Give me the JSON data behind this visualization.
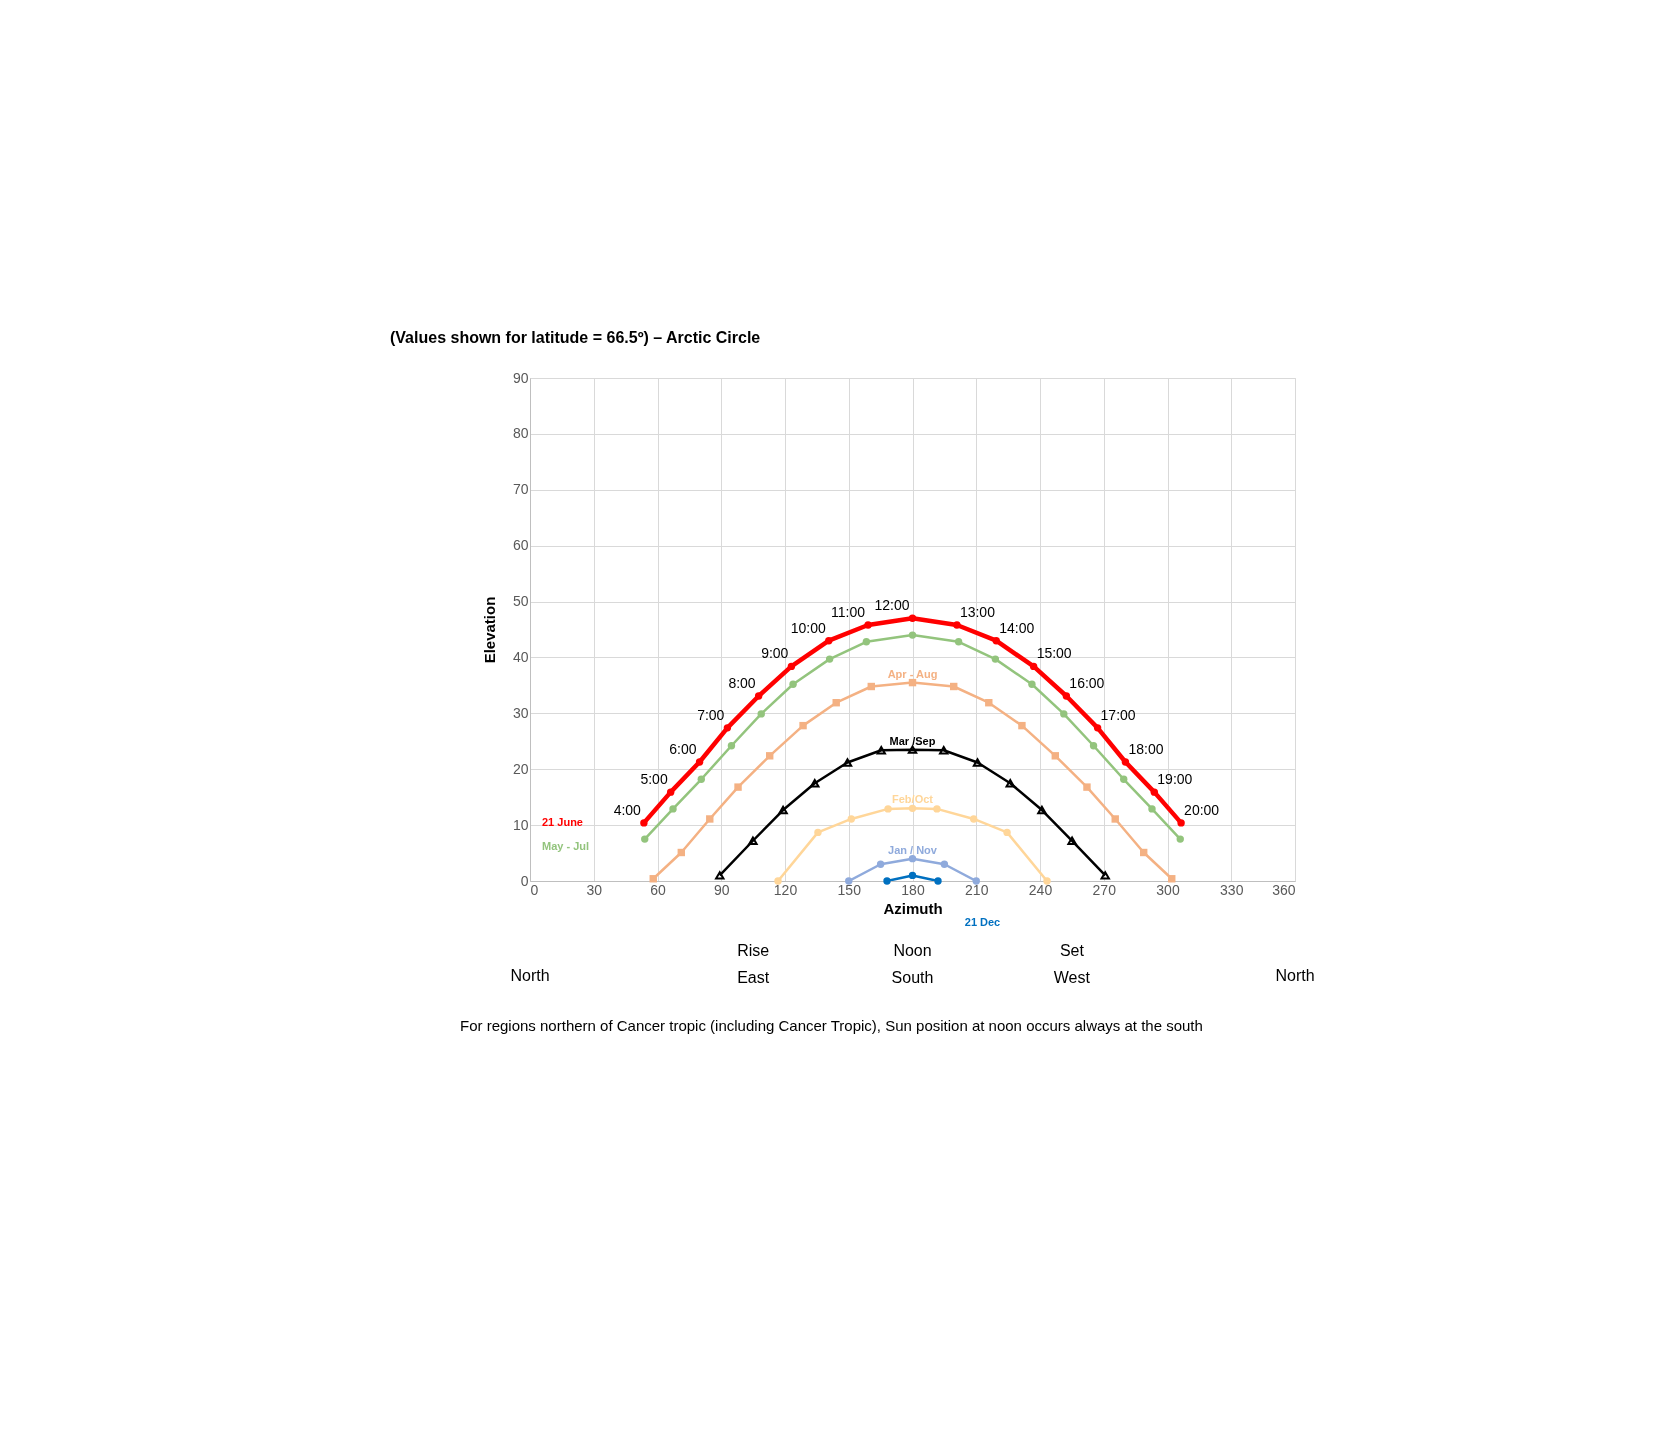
{
  "chart_data": {
    "type": "line",
    "title": "(Values shown for latitude = 66.5º) – Arctic Circle",
    "xlabel": "Azimuth",
    "ylabel": "Elevation",
    "xlim": [
      0,
      360
    ],
    "xticks": [
      0,
      30,
      60,
      90,
      120,
      150,
      180,
      210,
      240,
      270,
      300,
      330,
      360
    ],
    "ylim": [
      0,
      90
    ],
    "yticks": [
      0,
      10,
      20,
      30,
      40,
      50,
      60,
      70,
      80,
      90
    ],
    "grid": true,
    "marker": "circle",
    "series": [
      {
        "name": "21 June",
        "color": "#ff0000",
        "x": [
          53.6,
          66.2,
          79.8,
          92.9,
          107.6,
          123.0,
          140.6,
          159.1,
          180,
          200.9,
          219.4,
          237.0,
          252.4,
          267.1,
          280.2,
          293.8,
          306.4
        ],
        "values": [
          10.4,
          15.9,
          21.3,
          27.4,
          33.1,
          38.4,
          43.0,
          45.8,
          47,
          45.8,
          43.0,
          38.4,
          33.1,
          27.4,
          21.3,
          15.9,
          10.4
        ]
      },
      {
        "name": "May - Jul",
        "color": "#93c47d",
        "x": [
          54.0,
          67.3,
          80.6,
          94.8,
          108.8,
          123.8,
          141.0,
          158.3,
          180,
          201.7,
          219.0,
          236.2,
          251.2,
          265.2,
          279.4,
          292.7,
          306.0
        ],
        "values": [
          7.5,
          12.9,
          18.2,
          24.2,
          29.9,
          35.2,
          39.7,
          42.8,
          44,
          42.8,
          39.7,
          35.2,
          29.9,
          24.2,
          18.2,
          12.9,
          7.5
        ]
      },
      {
        "name": "Apr - Aug",
        "color": "#f4b183",
        "marker": "square",
        "x": [
          58.0,
          71.2,
          84.6,
          97.9,
          112.8,
          128.5,
          144.1,
          160.6,
          180,
          199.4,
          215.9,
          231.5,
          247.2,
          262.1,
          275.4,
          288.8,
          302.0
        ],
        "values": [
          0.4,
          5.1,
          11.1,
          16.8,
          22.4,
          27.8,
          31.9,
          34.8,
          35.5,
          34.8,
          31.9,
          27.8,
          22.4,
          16.8,
          11.1,
          5.1,
          0.4
        ]
      },
      {
        "name": "Mar /Sep",
        "color": "#000000",
        "marker": "triangle",
        "x": [
          89.3,
          104.9,
          119.1,
          134.0,
          149.4,
          165.3,
          180,
          194.7,
          210.6,
          226.0,
          240.9,
          255.1,
          270.7
        ],
        "values": [
          1.0,
          7.2,
          12.7,
          17.5,
          21.2,
          23.4,
          23.5,
          23.4,
          21.2,
          17.5,
          12.7,
          7.2,
          1.0
        ]
      },
      {
        "name": "Feb/Oct",
        "color": "#ffd699",
        "x": [
          116.7,
          135.5,
          151.2,
          168.5,
          180,
          191.5,
          208.8,
          224.5,
          243.3
        ],
        "values": [
          0,
          8.7,
          11.1,
          12.9,
          13,
          12.9,
          11.1,
          8.7,
          0
        ]
      },
      {
        "name": "Jan / Nov",
        "color": "#8faadc",
        "x": [
          150,
          165,
          180,
          195,
          210
        ],
        "values": [
          0,
          3,
          4,
          3,
          0
        ]
      },
      {
        "name": "21 Dec",
        "color": "#0070c0",
        "x": [
          168,
          180,
          192
        ],
        "values": [
          0,
          1,
          0
        ]
      }
    ],
    "annotations": [
      {
        "text": "4:00",
        "x": 53.6,
        "y": 10.4
      },
      {
        "text": "5:00",
        "x": 66.2,
        "y": 15.9
      },
      {
        "text": "6:00",
        "x": 79.8,
        "y": 21.3
      },
      {
        "text": "7:00",
        "x": 92.9,
        "y": 27.4
      },
      {
        "text": "8:00",
        "x": 107.6,
        "y": 33.1
      },
      {
        "text": "9:00",
        "x": 123.0,
        "y": 38.4
      },
      {
        "text": "10:00",
        "x": 140.6,
        "y": 43.0
      },
      {
        "text": "11:00",
        "x": 159.1,
        "y": 45.8
      },
      {
        "text": "12:00",
        "x": 180,
        "y": 47
      },
      {
        "text": "13:00",
        "x": 200.9,
        "y": 45.8
      },
      {
        "text": "14:00",
        "x": 219.4,
        "y": 43.0
      },
      {
        "text": "15:00",
        "x": 237.0,
        "y": 38.4
      },
      {
        "text": "16:00",
        "x": 252.4,
        "y": 33.1
      },
      {
        "text": "17:00",
        "x": 267.1,
        "y": 27.4
      },
      {
        "text": "18:00",
        "x": 280.2,
        "y": 21.3
      },
      {
        "text": "19:00",
        "x": 293.8,
        "y": 15.9
      },
      {
        "text": "20:00",
        "x": 306.4,
        "y": 10.4
      },
      "Rise",
      "Noon",
      "Set",
      "North",
      "East",
      "South",
      "West",
      "North",
      "For regions northern of Cancer tropic (including Cancer Tropic), Sun position at noon occurs always at the south"
    ]
  }
}
